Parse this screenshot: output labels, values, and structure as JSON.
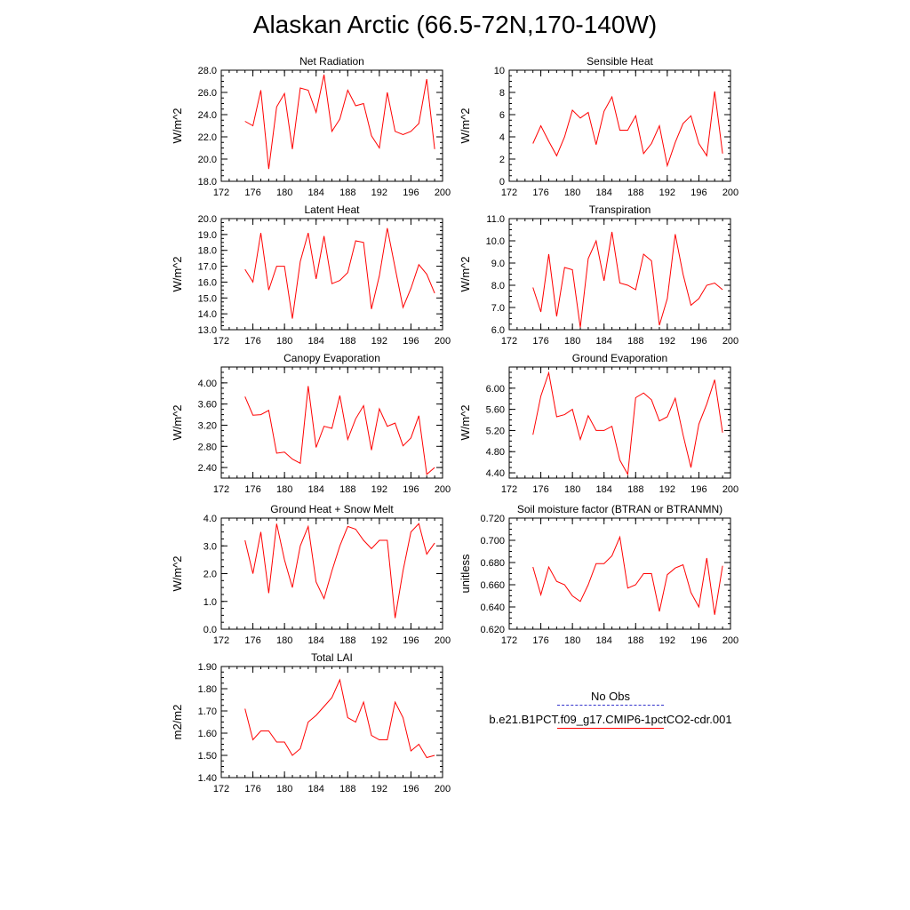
{
  "title": "Alaskan Arctic (66.5-72N,170-140W)",
  "legend": {
    "entries": [
      {
        "label": "No Obs",
        "color": "#3333cc",
        "style": "dashed"
      },
      {
        "label": "b.e21.B1PCT.f09_g17.CMIP6-1pctCO2-cdr.001",
        "color": "#ff0000",
        "style": "solid"
      }
    ]
  },
  "chart_data": [
    {
      "type": "line",
      "title": "Net Radiation",
      "ylabel": "W/m^2",
      "xlim": [
        172,
        200
      ],
      "ylim": [
        18.0,
        28.0
      ],
      "xticks": [
        172,
        176,
        180,
        184,
        188,
        192,
        196,
        200
      ],
      "yticks": [
        "18.0",
        "20.0",
        "22.0",
        "24.0",
        "26.0",
        "28.0"
      ],
      "x": [
        175,
        176,
        177,
        178,
        179,
        180,
        181,
        182,
        183,
        184,
        185,
        186,
        187,
        188,
        189,
        190,
        191,
        192,
        193,
        194,
        195,
        196,
        197,
        198,
        199
      ],
      "series": [
        {
          "color": "#ff0000",
          "values": [
            23.4,
            23.0,
            26.2,
            19.1,
            24.7,
            25.9,
            20.9,
            26.4,
            26.2,
            24.2,
            27.6,
            22.5,
            23.6,
            26.2,
            24.8,
            25.0,
            22.1,
            21.0,
            26.0,
            22.5,
            22.2,
            22.5,
            23.2,
            27.2,
            20.9
          ]
        }
      ]
    },
    {
      "type": "line",
      "title": "Sensible Heat",
      "ylabel": "W/m^2",
      "xlim": [
        172,
        200
      ],
      "ylim": [
        0,
        10
      ],
      "xticks": [
        172,
        176,
        180,
        184,
        188,
        192,
        196,
        200
      ],
      "yticks": [
        "0",
        "2",
        "4",
        "6",
        "8",
        "10"
      ],
      "x": [
        175,
        176,
        177,
        178,
        179,
        180,
        181,
        182,
        183,
        184,
        185,
        186,
        187,
        188,
        189,
        190,
        191,
        192,
        193,
        194,
        195,
        196,
        197,
        198,
        199
      ],
      "series": [
        {
          "color": "#ff0000",
          "values": [
            3.4,
            5.0,
            3.6,
            2.3,
            4.0,
            6.4,
            5.7,
            6.2,
            3.3,
            6.3,
            7.6,
            4.6,
            4.6,
            5.9,
            2.5,
            3.4,
            5.0,
            1.4,
            3.5,
            5.2,
            5.9,
            3.4,
            2.3,
            8.1,
            2.5
          ]
        }
      ]
    },
    {
      "type": "line",
      "title": "Latent Heat",
      "ylabel": "W/m^2",
      "xlim": [
        172,
        200
      ],
      "ylim": [
        13.0,
        20.0
      ],
      "xticks": [
        172,
        176,
        180,
        184,
        188,
        192,
        196,
        200
      ],
      "yticks": [
        "13.0",
        "14.0",
        "15.0",
        "16.0",
        "17.0",
        "18.0",
        "19.0",
        "20.0"
      ],
      "x": [
        175,
        176,
        177,
        178,
        179,
        180,
        181,
        182,
        183,
        184,
        185,
        186,
        187,
        188,
        189,
        190,
        191,
        192,
        193,
        194,
        195,
        196,
        197,
        198,
        199
      ],
      "series": [
        {
          "color": "#ff0000",
          "values": [
            16.8,
            16.0,
            19.1,
            15.5,
            17.0,
            17.0,
            13.7,
            17.3,
            19.1,
            16.2,
            18.9,
            15.9,
            16.1,
            16.6,
            18.6,
            18.5,
            14.3,
            16.4,
            19.4,
            16.9,
            14.4,
            15.6,
            17.1,
            16.5,
            15.3
          ]
        }
      ]
    },
    {
      "type": "line",
      "title": "Transpiration",
      "ylabel": "W/m^2",
      "xlim": [
        172,
        200
      ],
      "ylim": [
        6.0,
        11.0
      ],
      "xticks": [
        172,
        176,
        180,
        184,
        188,
        192,
        196,
        200
      ],
      "yticks": [
        "6.0",
        "7.0",
        "8.0",
        "9.0",
        "10.0",
        "11.0"
      ],
      "x": [
        175,
        176,
        177,
        178,
        179,
        180,
        181,
        182,
        183,
        184,
        185,
        186,
        187,
        188,
        189,
        190,
        191,
        192,
        193,
        194,
        195,
        196,
        197,
        198,
        199
      ],
      "series": [
        {
          "color": "#ff0000",
          "values": [
            7.9,
            6.8,
            9.4,
            6.6,
            8.8,
            8.7,
            6.1,
            9.2,
            10.0,
            8.2,
            10.4,
            8.1,
            8.0,
            7.8,
            9.4,
            9.1,
            6.2,
            7.4,
            10.3,
            8.5,
            7.1,
            7.4,
            8.0,
            8.1,
            7.8
          ]
        }
      ]
    },
    {
      "type": "line",
      "title": "Canopy Evaporation",
      "ylabel": "W/m^2",
      "xlim": [
        172,
        200
      ],
      "ylim": [
        2.2,
        4.3
      ],
      "xticks": [
        172,
        176,
        180,
        184,
        188,
        192,
        196,
        200
      ],
      "yticks": [
        "2.40",
        "2.80",
        "3.20",
        "3.60",
        "4.00"
      ],
      "x": [
        175,
        176,
        177,
        178,
        179,
        180,
        181,
        182,
        183,
        184,
        185,
        186,
        187,
        188,
        189,
        190,
        191,
        192,
        193,
        194,
        195,
        196,
        197,
        198,
        199
      ],
      "series": [
        {
          "color": "#ff0000",
          "values": [
            3.74,
            3.39,
            3.4,
            3.48,
            2.67,
            2.69,
            2.56,
            2.48,
            3.94,
            2.78,
            3.18,
            3.14,
            3.76,
            2.93,
            3.32,
            3.57,
            2.73,
            3.51,
            3.18,
            3.24,
            2.81,
            2.96,
            3.38,
            2.27,
            2.4
          ]
        }
      ]
    },
    {
      "type": "line",
      "title": "Ground Evaporation",
      "ylabel": "W/m^2",
      "xlim": [
        172,
        200
      ],
      "ylim": [
        4.3,
        6.4
      ],
      "xticks": [
        172,
        176,
        180,
        184,
        188,
        192,
        196,
        200
      ],
      "yticks": [
        "4.40",
        "4.80",
        "5.20",
        "5.60",
        "6.00"
      ],
      "x": [
        175,
        176,
        177,
        178,
        179,
        180,
        181,
        182,
        183,
        184,
        185,
        186,
        187,
        188,
        189,
        190,
        191,
        192,
        193,
        194,
        195,
        196,
        197,
        198,
        199
      ],
      "series": [
        {
          "color": "#ff0000",
          "values": [
            5.12,
            5.85,
            6.29,
            5.46,
            5.5,
            5.6,
            5.03,
            5.48,
            5.2,
            5.2,
            5.28,
            4.64,
            4.37,
            5.82,
            5.91,
            5.78,
            5.38,
            5.46,
            5.81,
            5.12,
            4.5,
            5.32,
            5.7,
            6.16,
            5.16
          ]
        }
      ]
    },
    {
      "type": "line",
      "title": "Ground Heat + Snow Melt",
      "ylabel": "W/m^2",
      "xlim": [
        172,
        200
      ],
      "ylim": [
        0.0,
        4.0
      ],
      "xticks": [
        172,
        176,
        180,
        184,
        188,
        192,
        196,
        200
      ],
      "yticks": [
        "0.0",
        "1.0",
        "2.0",
        "3.0",
        "4.0"
      ],
      "x": [
        175,
        176,
        177,
        178,
        179,
        180,
        181,
        182,
        183,
        184,
        185,
        186,
        187,
        188,
        189,
        190,
        191,
        192,
        193,
        194,
        195,
        196,
        197,
        198,
        199
      ],
      "series": [
        {
          "color": "#ff0000",
          "values": [
            3.2,
            2.0,
            3.5,
            1.3,
            3.8,
            2.5,
            1.5,
            3.0,
            3.7,
            1.7,
            1.1,
            2.1,
            3.0,
            3.7,
            3.6,
            3.2,
            2.9,
            3.2,
            3.2,
            0.4,
            2.1,
            3.5,
            3.8,
            2.7,
            3.1
          ]
        }
      ]
    },
    {
      "type": "line",
      "title": "Soil moisture factor (BTRAN or BTRANMN)",
      "ylabel": "unitless",
      "xlim": [
        172,
        200
      ],
      "ylim": [
        0.62,
        0.72
      ],
      "xticks": [
        172,
        176,
        180,
        184,
        188,
        192,
        196,
        200
      ],
      "yticks": [
        "0.620",
        "0.640",
        "0.660",
        "0.680",
        "0.700",
        "0.720"
      ],
      "x": [
        175,
        176,
        177,
        178,
        179,
        180,
        181,
        182,
        183,
        184,
        185,
        186,
        187,
        188,
        189,
        190,
        191,
        192,
        193,
        194,
        195,
        196,
        197,
        198,
        199
      ],
      "series": [
        {
          "color": "#ff0000",
          "values": [
            0.676,
            0.651,
            0.676,
            0.663,
            0.66,
            0.65,
            0.645,
            0.66,
            0.679,
            0.679,
            0.686,
            0.703,
            0.657,
            0.66,
            0.67,
            0.67,
            0.636,
            0.669,
            0.675,
            0.678,
            0.653,
            0.64,
            0.684,
            0.633,
            0.677
          ]
        }
      ]
    },
    {
      "type": "line",
      "title": "Total LAI",
      "ylabel": "m2/m2",
      "xlim": [
        172,
        200
      ],
      "ylim": [
        1.4,
        1.9
      ],
      "xticks": [
        172,
        176,
        180,
        184,
        188,
        192,
        196,
        200
      ],
      "yticks": [
        "1.40",
        "1.50",
        "1.60",
        "1.70",
        "1.80",
        "1.90"
      ],
      "x": [
        175,
        176,
        177,
        178,
        179,
        180,
        181,
        182,
        183,
        184,
        185,
        186,
        187,
        188,
        189,
        190,
        191,
        192,
        193,
        194,
        195,
        196,
        197,
        198,
        199
      ],
      "series": [
        {
          "color": "#ff0000",
          "values": [
            1.71,
            1.57,
            1.61,
            1.61,
            1.56,
            1.56,
            1.5,
            1.53,
            1.65,
            1.68,
            1.72,
            1.76,
            1.84,
            1.67,
            1.65,
            1.74,
            1.59,
            1.57,
            1.57,
            1.74,
            1.67,
            1.52,
            1.55,
            1.49,
            1.5
          ]
        }
      ]
    }
  ]
}
